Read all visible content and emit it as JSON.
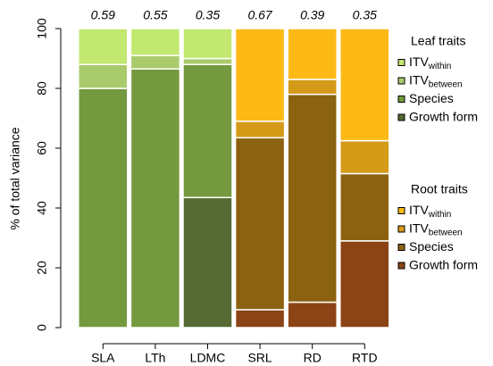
{
  "chart_data": {
    "type": "stacked-bar",
    "y_label": "% of total variance",
    "categories": [
      "SLA",
      "LTh",
      "LDMC",
      "SRL",
      "RD",
      "RTD"
    ],
    "top_labels": [
      0.59,
      0.55,
      0.35,
      0.67,
      0.39,
      0.35
    ],
    "ylim": [
      0,
      100
    ],
    "yticks": [
      0,
      20,
      40,
      60,
      80,
      100
    ],
    "series_groups": [
      {
        "title": "Leaf traits",
        "series": [
          {
            "name": "ITV",
            "subscript": "within",
            "color": "#c2e870",
            "values": [
              12,
              9,
              10,
              null,
              null,
              null
            ]
          },
          {
            "name": "ITV",
            "subscript": "between",
            "color": "#a9cb6c",
            "values": [
              8,
              4.5,
              2,
              null,
              null,
              null
            ]
          },
          {
            "name": "Species",
            "color": "#74993f",
            "values": [
              80,
              86.5,
              44.5,
              null,
              null,
              null
            ]
          },
          {
            "name": "Growth form",
            "color": "#566b33",
            "values": [
              0,
              0,
              43.5,
              null,
              null,
              null
            ]
          }
        ]
      },
      {
        "title": "Root traits",
        "series": [
          {
            "name": "ITV",
            "subscript": "within",
            "color": "#fdb916",
            "values": [
              null,
              null,
              null,
              31,
              17,
              37.5
            ]
          },
          {
            "name": "ITV",
            "subscript": "between",
            "color": "#d49a18",
            "values": [
              null,
              null,
              null,
              5.5,
              5,
              11
            ]
          },
          {
            "name": "Species",
            "color": "#8b6210",
            "values": [
              null,
              null,
              null,
              57.5,
              69.5,
              22.5
            ]
          },
          {
            "name": "Growth form",
            "color": "#8c4416",
            "values": [
              null,
              null,
              null,
              6,
              8.5,
              29
            ]
          }
        ]
      }
    ]
  }
}
